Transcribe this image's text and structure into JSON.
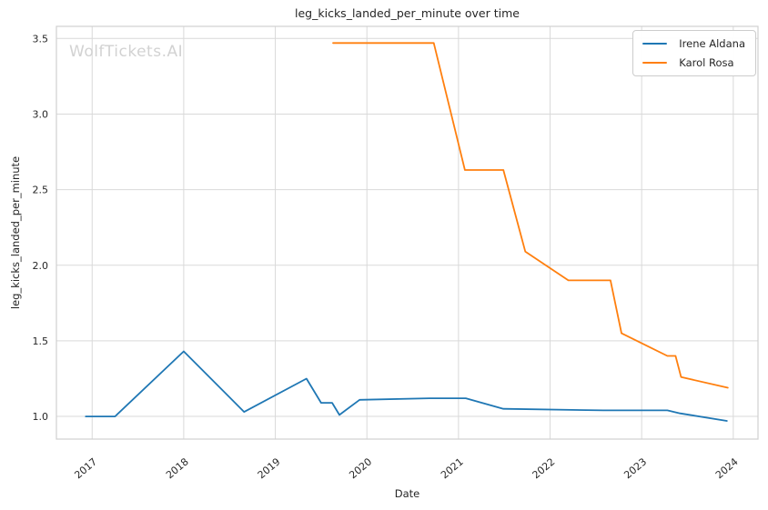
{
  "watermark": "WolfTickets.AI",
  "colors": {
    "background": "#ffffff",
    "grid": "#d9d9d9",
    "frame": "#d0d0d0",
    "text": "#262626",
    "watermark": "#d2d2d2",
    "series_blue": "#1f77b4",
    "series_orange": "#ff7f0e"
  },
  "chart_data": {
    "type": "line",
    "title": "leg_kicks_landed_per_minute over time",
    "xlabel": "Date",
    "ylabel": "leg_kicks_landed_per_minute",
    "grid": true,
    "legend_position": "upper right",
    "xlim": [
      2016.61,
      2024.27
    ],
    "ylim": [
      0.85,
      3.58
    ],
    "x_ticks": [
      2017,
      2018,
      2019,
      2020,
      2021,
      2022,
      2023,
      2024
    ],
    "x_tick_labels": [
      "2017",
      "2018",
      "2019",
      "2020",
      "2021",
      "2022",
      "2023",
      "2024"
    ],
    "y_ticks": [
      1.0,
      1.5,
      2.0,
      2.5,
      3.0,
      3.5
    ],
    "y_tick_labels": [
      "1.0",
      "1.5",
      "2.0",
      "2.5",
      "3.0",
      "3.5"
    ],
    "series": [
      {
        "name": "Irene Aldana",
        "color": "#1f77b4",
        "x": [
          2016.93,
          2017.25,
          2018.0,
          2018.66,
          2019.34,
          2019.5,
          2019.62,
          2019.7,
          2019.92,
          2020.68,
          2021.08,
          2021.49,
          2022.58,
          2023.28,
          2023.42,
          2023.93
        ],
        "y": [
          1.0,
          1.0,
          1.43,
          1.03,
          1.25,
          1.09,
          1.09,
          1.01,
          1.11,
          1.12,
          1.12,
          1.05,
          1.04,
          1.04,
          1.02,
          0.97
        ]
      },
      {
        "name": "Karol Rosa",
        "color": "#ff7f0e",
        "x": [
          2019.63,
          2020.73,
          2021.07,
          2021.49,
          2021.73,
          2022.2,
          2022.66,
          2022.78,
          2023.28,
          2023.37,
          2023.43,
          2023.94
        ],
        "y": [
          3.47,
          3.47,
          2.63,
          2.63,
          2.09,
          1.9,
          1.9,
          1.55,
          1.4,
          1.4,
          1.26,
          1.19
        ]
      }
    ]
  }
}
